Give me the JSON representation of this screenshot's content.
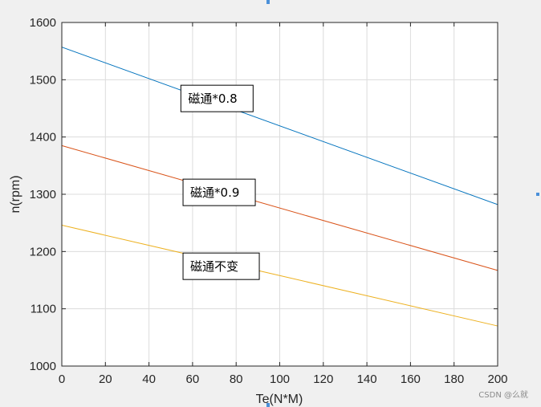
{
  "chart_data": {
    "type": "line",
    "xlabel": "Te(N*M)",
    "ylabel": "n(rpm)",
    "xlim": [
      0,
      200
    ],
    "ylim": [
      1000,
      1600
    ],
    "xticks": [
      0,
      20,
      40,
      60,
      80,
      100,
      120,
      140,
      160,
      180,
      200
    ],
    "yticks": [
      1000,
      1100,
      1200,
      1300,
      1400,
      1500,
      1600
    ],
    "grid": true,
    "series": [
      {
        "color": "#0072bd",
        "x": [
          0,
          200
        ],
        "y": [
          1557,
          1282
        ]
      },
      {
        "color": "#d95319",
        "x": [
          0,
          200
        ],
        "y": [
          1385,
          1167
        ]
      },
      {
        "color": "#edb120",
        "x": [
          0,
          200
        ],
        "y": [
          1246,
          1070
        ]
      }
    ],
    "annotations": [
      {
        "text": "磁通*0.8",
        "x": 55,
        "y": 1468
      },
      {
        "text": "磁通*0.9",
        "x": 56,
        "y": 1304
      },
      {
        "text": "磁通不变",
        "x": 56,
        "y": 1175
      }
    ]
  },
  "watermark": "CSDN @么就"
}
